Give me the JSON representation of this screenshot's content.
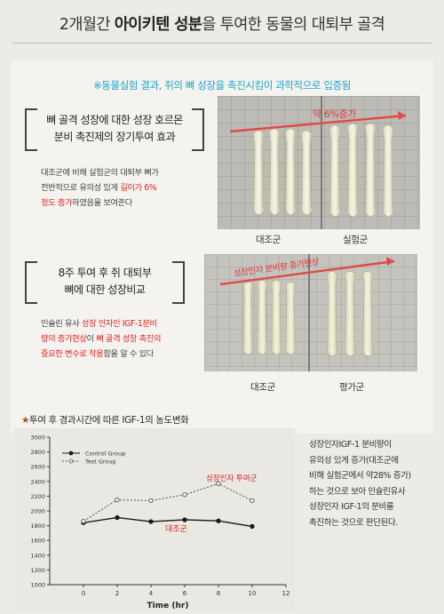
{
  "header": {
    "title_pre": "2개월간 ",
    "title_bold1": "아이키텐 성분",
    "title_mid": "을 투여한 동물의 대퇴부 골격"
  },
  "subhead": "※동물실험 결과, 쥐의 뼈 성장을 촉진시킴이 과학적으로 입증됨",
  "section1": {
    "bracket_line1": "뼈 골격 성장에 대한 성장 호르몬",
    "bracket_line2": "분비 촉진제의 장기투여 효과",
    "desc_line1": "대조군에 비해 실험군의 대퇴부 뼈가",
    "desc_line2_a": "전반적으로 유의성 있게 ",
    "desc_line2_b": "길이가 6%",
    "desc_line3_a": "정도 증가",
    "desc_line3_b": "하였음을 보여준다",
    "photo_label": "약 6%증가",
    "caption_left": "대조군",
    "caption_right": "실험군"
  },
  "section2": {
    "bracket_line1": "8주 투여 후 쥐 대퇴부",
    "bracket_line2": "뼈에 대한 성장비교",
    "desc_line1_a": "인슐린 유사 ",
    "desc_line1_b": "성장 인자인 IGF-1분비",
    "desc_line2_a": "량의 증가현상",
    "desc_line2_b": "이 ",
    "desc_line2_c": "뼈 골격 성장 촉진의",
    "desc_line3_a": "중요한 변수로 작용",
    "desc_line3_b": "함을 알 수 있다",
    "photo_label": "성장인자 분비량 증가현상",
    "caption_left": "대조군",
    "caption_right": "평가군"
  },
  "chart_section": {
    "title_star": "★",
    "title_text": "투여 후 경과시간에 따른 IGF-1의 농도변화",
    "annotation_test": "성장인자 투여군",
    "annotation_control": "대조군"
  },
  "side_text": {
    "line1": "성장인자IGF-1 분비량이",
    "line2": "유의성 있게 증가(대조군에",
    "line3": "비해 실험군에서 약28% 증가)",
    "line4": "하는 것으로 보아 인슐린유사",
    "line5": "성장인자 IGF-1의 분비를",
    "line6": "촉진하는 것으로 판단된다."
  },
  "chart_data": {
    "type": "line",
    "title": "",
    "xlabel": "Time (hr)",
    "ylabel": "",
    "x": [
      0,
      2,
      4,
      6,
      8,
      10
    ],
    "xlim": [
      -2,
      12
    ],
    "xticks": [
      0,
      2,
      4,
      6,
      8,
      10,
      12
    ],
    "ylim": [
      1000,
      3000
    ],
    "yticks": [
      1000,
      1200,
      1400,
      1600,
      1800,
      2000,
      2200,
      2400,
      2600,
      2800,
      3000
    ],
    "series": [
      {
        "name": "Control Group",
        "values": [
          1840,
          1910,
          1855,
          1880,
          1865,
          1790
        ],
        "color": "#1a1a1a",
        "marker": "filled"
      },
      {
        "name": "Test Group",
        "values": [
          1860,
          2150,
          2140,
          2220,
          2370,
          2140
        ],
        "color": "#555555",
        "marker": "open",
        "dashed": true
      }
    ],
    "legend": "top-left",
    "grid": false
  }
}
